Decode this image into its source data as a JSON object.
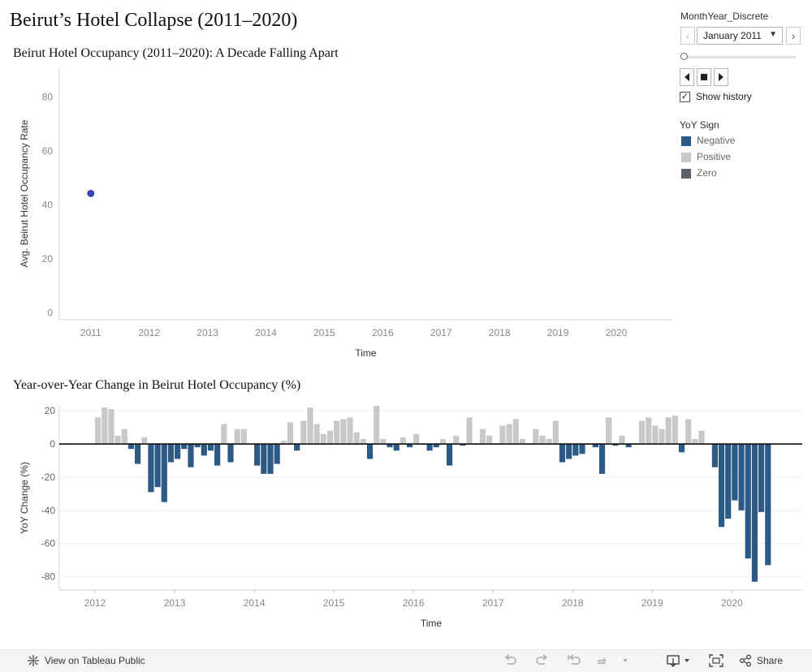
{
  "dashboard": {
    "title": "Beirut’s Hotel Collapse (2011–2020)"
  },
  "filter": {
    "title": "MonthYear_Discrete",
    "selected": "January 2011",
    "prev_symbol": "‹",
    "next_symbol": "›",
    "show_history_label": "Show history",
    "show_history_checked": true,
    "check_mark": "✓"
  },
  "legend": {
    "title": "YoY Sign",
    "items": [
      {
        "label": "Negative",
        "color": "#2c5985"
      },
      {
        "label": "Positive",
        "color": "#c8c8c8"
      },
      {
        "label": "Zero",
        "color": "#5b5f66"
      }
    ]
  },
  "footer": {
    "view_label": "View on Tableau Public",
    "share_label": "Share"
  },
  "colors": {
    "point": "#3c43b0",
    "negative": "#2c5985",
    "positive": "#c8c8c8",
    "zero": "#5b5f66"
  },
  "chart_data": [
    {
      "type": "scatter",
      "title": "Beirut Hotel Occupancy (2011–2020): A Decade Falling Apart",
      "xlabel": "Time",
      "ylabel": "Avg. Beirut Hotel Occupancy Rate",
      "x_ticks": [
        "2011",
        "2012",
        "2013",
        "2014",
        "2015",
        "2016",
        "2017",
        "2018",
        "2019",
        "2020"
      ],
      "y_ticks": [
        0,
        20,
        40,
        60,
        80
      ],
      "ylim": [
        -2.5,
        91
      ],
      "points": [
        {
          "x": "2011",
          "y": 44.3
        }
      ],
      "grid": false
    },
    {
      "type": "bar",
      "title": "Year-over-Year Change in Beirut Hotel Occupancy (%)",
      "xlabel": "Time",
      "ylabel": "YoY Change (%)",
      "x_ticks": [
        "2012",
        "2013",
        "2014",
        "2015",
        "2016",
        "2017",
        "2018",
        "2019",
        "2020"
      ],
      "y_ticks": [
        20,
        0,
        -20,
        -40,
        -60,
        -80
      ],
      "ylim": [
        -88,
        23
      ],
      "start": "2012-01",
      "values": [
        16,
        22,
        21,
        5,
        9,
        -3,
        -12,
        4,
        -29,
        -26,
        -35,
        -11,
        -9,
        -3,
        -14,
        -2,
        -7,
        -4,
        -13,
        12,
        -11,
        9,
        9,
        0,
        -13,
        -18,
        -18,
        -12,
        2,
        13,
        -4,
        14,
        22,
        12,
        6,
        8,
        14,
        15,
        16,
        7,
        3,
        -9,
        23,
        3,
        -2,
        -4,
        4,
        -2,
        6,
        0,
        -4,
        -2,
        3,
        -13,
        5,
        -1,
        16,
        0,
        9,
        5,
        0,
        11,
        12,
        15,
        3,
        0,
        9,
        5,
        3,
        14,
        -11,
        -9,
        -7,
        -6,
        0,
        -2,
        -18,
        16,
        -1,
        5,
        -2,
        0,
        14,
        16,
        11,
        9,
        16,
        17,
        -5,
        15,
        3,
        8,
        0,
        -14,
        -50,
        -45,
        -34,
        -40,
        -69,
        -83,
        -41,
        -73
      ]
    }
  ]
}
